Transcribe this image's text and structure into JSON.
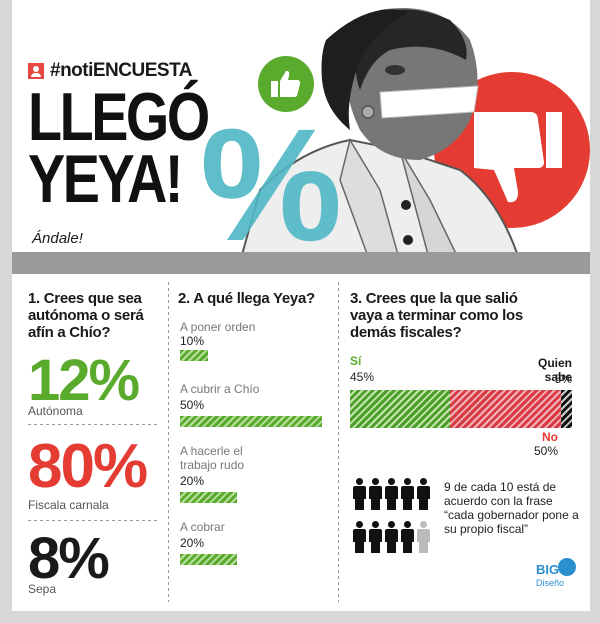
{
  "header": {
    "tag": "#notiENCUESTA",
    "headline_line1": "LLEGÓ",
    "headline_line2": "YEYA!",
    "subtitle": "Ándale!",
    "percent_symbol": "%"
  },
  "colors": {
    "accent_green": "#5aaa2e",
    "accent_red": "#e43b32",
    "accent_teal": "#4fb8c6",
    "text_dark": "#1a1a1a"
  },
  "icons": [
    "user-icon",
    "thumbs-up-icon",
    "thumbs-down-icon",
    "person-icon"
  ],
  "q1": {
    "title": "1. Crees que sea autónoma o será afín a Chío?",
    "items": [
      {
        "value": "12%",
        "label": "Autónoma",
        "color": "#5aaa2e"
      },
      {
        "value": "80%",
        "label": "Fiscala carnala",
        "color": "#e43b32"
      },
      {
        "value": "8%",
        "label": "Sepa",
        "color": "#1a1a1a"
      }
    ]
  },
  "q2": {
    "title": "2. A qué llega Yeya?",
    "options": [
      {
        "label": "A poner orden",
        "value": "10%",
        "pct": 10
      },
      {
        "label": "A cubrir a Chío",
        "value": "50%",
        "pct": 50
      },
      {
        "label": "A hacerle el trabajo rudo",
        "value": "20%",
        "pct": 20
      },
      {
        "label": "A cobrar",
        "value": "20%",
        "pct": 20
      }
    ]
  },
  "q3": {
    "title": "3. Crees que la que salió vaya a terminar como los demás fiscales?",
    "yes_label": "Sí",
    "yes_value": "45%",
    "yes_pct": 45,
    "qs_label": "Quien sabe",
    "qs_value": "5%",
    "qs_pct": 5,
    "no_label": "No",
    "no_value": "50%",
    "no_pct": 50
  },
  "fact": {
    "text": "9 de cada 10 está de acuerdo con la frase “cada gobernador pone a su propio fiscal”",
    "agree_count": 9,
    "total": 10
  },
  "logo": {
    "name": "BIG",
    "sub": "Diseño"
  }
}
